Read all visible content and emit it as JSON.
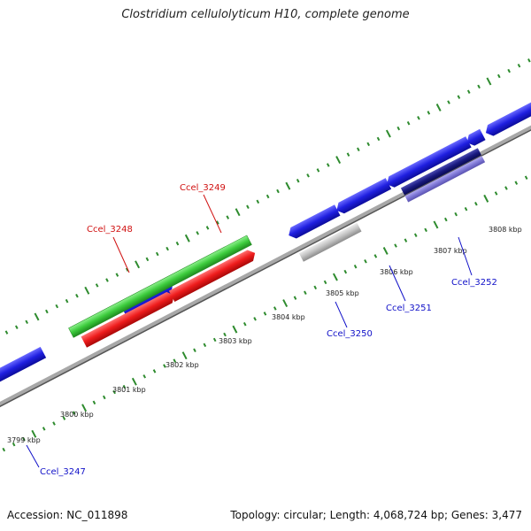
{
  "header": {
    "title": "Clostridium cellulolyticum H10, complete genome"
  },
  "footer": {
    "accession_label": "Accession:",
    "accession_value": "NC_011898",
    "summary": "Topology: circular; Length: 4,068,724 bp; Genes: 3,477"
  },
  "colors": {
    "backbone": "#8a8a8a",
    "tick": "#2e8b2e",
    "cds_blue": "#1f1fe0",
    "cds_navy": "#1a1a80",
    "cds_lavender": "#7f78d6",
    "cds_red": "#ee1c1c",
    "cds_green": "#3ccb3c",
    "cds_gray": "#c0c0c0",
    "label_red": "#d01010",
    "label_blue": "#1010c8"
  },
  "scale_labels": [
    "3799 kbp",
    "3800 kbp",
    "3801 kbp",
    "3802 kbp",
    "3803 kbp",
    "3804 kbp",
    "3805 kbp",
    "3806 kbp",
    "3807 kbp",
    "3808 kbp"
  ],
  "gene_labels": [
    {
      "id": "Ccel_3247",
      "color": "label_blue"
    },
    {
      "id": "Ccel_3248",
      "color": "label_red"
    },
    {
      "id": "Ccel_3249",
      "color": "label_red"
    },
    {
      "id": "Ccel_3250",
      "color": "label_blue"
    },
    {
      "id": "Ccel_3251",
      "color": "label_blue"
    },
    {
      "id": "Ccel_3252",
      "color": "label_blue"
    }
  ]
}
